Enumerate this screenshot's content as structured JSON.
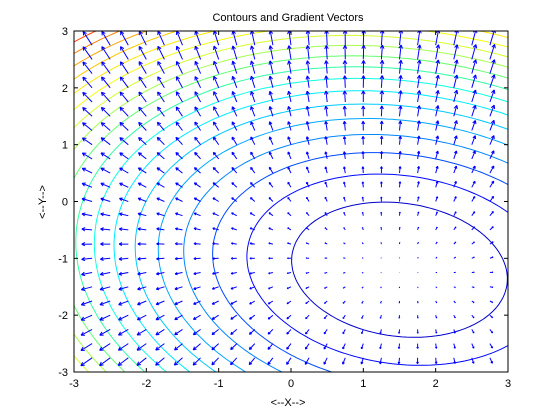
{
  "chart_data": {
    "type": "contour",
    "title": "Contours and Gradient Vectors",
    "xlabel": "<--X-->",
    "ylabel": "<--Y-->",
    "xlim": [
      -3,
      3
    ],
    "ylim": [
      -3,
      3
    ],
    "xticks": [
      -3,
      -2,
      -1,
      0,
      1,
      2,
      3
    ],
    "yticks": [
      -3,
      -2,
      -1,
      0,
      1,
      2,
      3
    ],
    "xtick_labels": [
      "-3",
      "-2",
      "-1",
      "0",
      "1",
      "2",
      "3"
    ],
    "ytick_labels": [
      "-3",
      "-2",
      "-1",
      "0",
      "1",
      "2",
      "3"
    ],
    "grid": false,
    "contour_minimum": {
      "x": 1.5,
      "y": -1.2
    },
    "contour_levels": 18,
    "colormap": [
      "#00008f",
      "#0000ff",
      "#0080ff",
      "#00c0ff",
      "#00ffff",
      "#40ff80",
      "#c0ff40",
      "#ffff00",
      "#ffc000",
      "#ff8000",
      "#ff0000"
    ],
    "quiver_color": "#0000ff",
    "quiver_grid_step": 0.25
  }
}
